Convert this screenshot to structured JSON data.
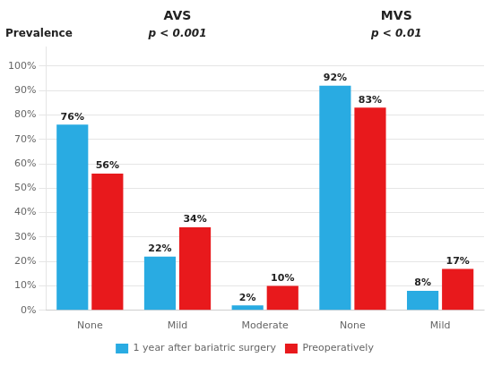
{
  "chart_data": {
    "type": "bar",
    "categories": [
      "None",
      "Mild",
      "Moderate",
      "None",
      "Mild"
    ],
    "series": [
      {
        "name": "1 year after bariatric surgery",
        "color": "#29ABE2",
        "values": [
          76,
          22,
          2,
          92,
          8
        ],
        "value_labels": [
          "76%",
          "22%",
          "2%",
          "92%",
          "8%"
        ]
      },
      {
        "name": "Preoperatively",
        "color": "#E8191C",
        "values": [
          56,
          34,
          10,
          83,
          17
        ],
        "value_labels": [
          "56%",
          "34%",
          "10%",
          "83%",
          "17%"
        ]
      }
    ],
    "ylabel": "Prevalence",
    "annotations": [
      "AVS",
      "p < 0.001",
      "MVS",
      "p < 0.01"
    ],
    "ylim": [
      0,
      108
    ],
    "yticks": [
      {
        "value": 0,
        "label": "0%"
      },
      {
        "value": 10,
        "label": "10%"
      },
      {
        "value": 20,
        "label": "20%"
      },
      {
        "value": 30,
        "label": "30%"
      },
      {
        "value": 40,
        "label": "40%"
      },
      {
        "value": 50,
        "label": "50%"
      },
      {
        "value": 60,
        "label": "60%"
      },
      {
        "value": 70,
        "label": "70%"
      },
      {
        "value": 80,
        "label": "80%"
      },
      {
        "value": 90,
        "label": "90%"
      },
      {
        "value": 100,
        "label": "100%"
      }
    ],
    "grid": true,
    "legend": "bottom",
    "data_labels": true
  }
}
